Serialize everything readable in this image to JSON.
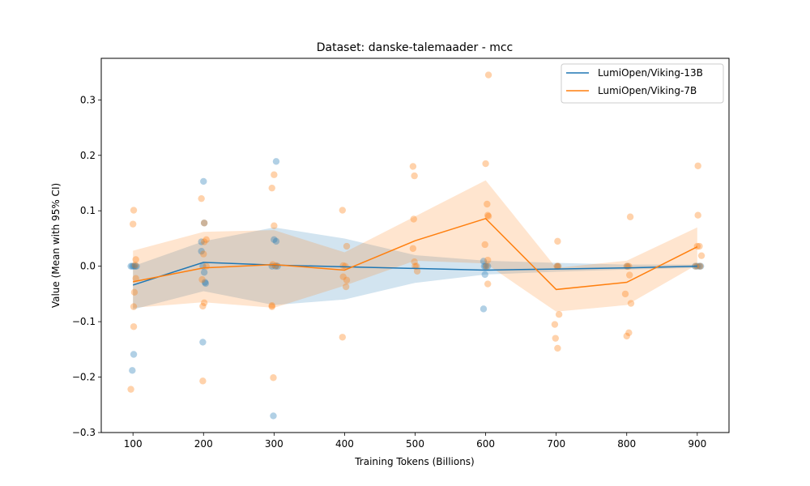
{
  "chart_data": {
    "type": "line",
    "title": "Dataset: danske-talemaader - mcc",
    "xlabel": "Training Tokens (Billions)",
    "ylabel": "Value (Mean with 95% CI)",
    "xlim": [
      55,
      945
    ],
    "ylim": [
      -0.3,
      0.375
    ],
    "xticks": [
      100,
      200,
      300,
      400,
      500,
      600,
      700,
      800,
      900
    ],
    "yticks": [
      -0.3,
      -0.2,
      -0.1,
      0.0,
      0.1,
      0.2,
      0.3
    ],
    "ytick_labels": [
      "−0.3",
      "−0.2",
      "−0.1",
      "0.0",
      "0.1",
      "0.2",
      "0.3"
    ],
    "grid": false,
    "legend_position": "top-right",
    "x": [
      100,
      200,
      300,
      400,
      500,
      600,
      700,
      800,
      900
    ],
    "series": [
      {
        "name": "LumiOpen/Viking-13B",
        "color": "#1f77b4",
        "mean": [
          -0.034,
          0.007,
          0.002,
          -0.001,
          -0.004,
          -0.007,
          -0.005,
          -0.003,
          0.0
        ],
        "ci_lower": [
          -0.078,
          -0.045,
          -0.07,
          -0.06,
          -0.03,
          -0.015,
          -0.01,
          -0.006,
          -0.003
        ],
        "ci_upper": [
          0.0,
          0.045,
          0.07,
          0.05,
          0.02,
          0.01,
          0.006,
          0.003,
          0.003
        ],
        "scatter": [
          {
            "x": 97,
            "y": 0.0
          },
          {
            "x": 99,
            "y": 0.0
          },
          {
            "x": 101,
            "y": 0.0
          },
          {
            "x": 103,
            "y": 0.0
          },
          {
            "x": 105,
            "y": 0.0
          },
          {
            "x": 99,
            "y": -0.188
          },
          {
            "x": 101,
            "y": -0.159
          },
          {
            "x": 200,
            "y": 0.153
          },
          {
            "x": 197,
            "y": 0.044
          },
          {
            "x": 197,
            "y": 0.027
          },
          {
            "x": 199,
            "y": 0.0
          },
          {
            "x": 201,
            "y": -0.011
          },
          {
            "x": 202,
            "y": -0.029
          },
          {
            "x": 203,
            "y": -0.031
          },
          {
            "x": 199,
            "y": -0.137
          },
          {
            "x": 201,
            "y": 0.078
          },
          {
            "x": 303,
            "y": 0.189
          },
          {
            "x": 300,
            "y": 0.048
          },
          {
            "x": 303,
            "y": 0.045
          },
          {
            "x": 297,
            "y": 0.0
          },
          {
            "x": 302,
            "y": 0.0
          },
          {
            "x": 305,
            "y": 0.0
          },
          {
            "x": 299,
            "y": -0.27
          },
          {
            "x": 597,
            "y": 0.009
          },
          {
            "x": 598,
            "y": 0.0
          },
          {
            "x": 600,
            "y": 0.0
          },
          {
            "x": 603,
            "y": 0.0
          },
          {
            "x": 599,
            "y": -0.015
          },
          {
            "x": 597,
            "y": -0.077
          },
          {
            "x": 702,
            "y": 0.0
          },
          {
            "x": 801,
            "y": 0.0
          },
          {
            "x": 897,
            "y": 0.0
          },
          {
            "x": 900,
            "y": 0.0
          },
          {
            "x": 903,
            "y": 0.0
          },
          {
            "x": 905,
            "y": 0.0
          }
        ]
      },
      {
        "name": "LumiOpen/Viking-7B",
        "color": "#ff7f0e",
        "mean": [
          -0.028,
          -0.003,
          0.003,
          -0.007,
          0.046,
          0.086,
          -0.042,
          -0.029,
          0.035
        ],
        "ci_lower": [
          -0.075,
          -0.065,
          -0.075,
          -0.035,
          0.01,
          0.005,
          -0.082,
          -0.07,
          0.003
        ],
        "ci_upper": [
          0.028,
          0.062,
          0.065,
          0.025,
          0.09,
          0.155,
          -0.003,
          0.01,
          0.07
        ],
        "scatter": [
          {
            "x": 101,
            "y": 0.101
          },
          {
            "x": 100,
            "y": 0.076
          },
          {
            "x": 104,
            "y": 0.012
          },
          {
            "x": 103,
            "y": 0.002
          },
          {
            "x": 104,
            "y": -0.022
          },
          {
            "x": 102,
            "y": -0.047
          },
          {
            "x": 101,
            "y": -0.073
          },
          {
            "x": 101,
            "y": -0.109
          },
          {
            "x": 97,
            "y": -0.222
          },
          {
            "x": 197,
            "y": 0.122
          },
          {
            "x": 201,
            "y": 0.078
          },
          {
            "x": 204,
            "y": 0.048
          },
          {
            "x": 201,
            "y": 0.044
          },
          {
            "x": 200,
            "y": 0.022
          },
          {
            "x": 204,
            "y": 0.0
          },
          {
            "x": 198,
            "y": -0.024
          },
          {
            "x": 201,
            "y": -0.066
          },
          {
            "x": 199,
            "y": -0.072
          },
          {
            "x": 199,
            "y": -0.207
          },
          {
            "x": 297,
            "y": 0.141
          },
          {
            "x": 300,
            "y": 0.165
          },
          {
            "x": 300,
            "y": 0.073
          },
          {
            "x": 298,
            "y": 0.003
          },
          {
            "x": 303,
            "y": 0.001
          },
          {
            "x": 297,
            "y": -0.073
          },
          {
            "x": 297,
            "y": -0.071
          },
          {
            "x": 299,
            "y": -0.201
          },
          {
            "x": 397,
            "y": 0.101
          },
          {
            "x": 403,
            "y": 0.036
          },
          {
            "x": 398,
            "y": 0.001
          },
          {
            "x": 401,
            "y": 0.0
          },
          {
            "x": 398,
            "y": -0.019
          },
          {
            "x": 403,
            "y": -0.025
          },
          {
            "x": 402,
            "y": -0.037
          },
          {
            "x": 397,
            "y": -0.128
          },
          {
            "x": 497,
            "y": 0.18
          },
          {
            "x": 499,
            "y": 0.163
          },
          {
            "x": 498,
            "y": 0.085
          },
          {
            "x": 497,
            "y": 0.032
          },
          {
            "x": 499,
            "y": 0.008
          },
          {
            "x": 500,
            "y": 0.0
          },
          {
            "x": 502,
            "y": 0.0
          },
          {
            "x": 503,
            "y": -0.009
          },
          {
            "x": 604,
            "y": 0.345
          },
          {
            "x": 600,
            "y": 0.185
          },
          {
            "x": 602,
            "y": 0.112
          },
          {
            "x": 603,
            "y": 0.092
          },
          {
            "x": 604,
            "y": 0.09
          },
          {
            "x": 599,
            "y": 0.039
          },
          {
            "x": 603,
            "y": 0.011
          },
          {
            "x": 601,
            "y": 0.0
          },
          {
            "x": 603,
            "y": -0.032
          },
          {
            "x": 702,
            "y": 0.045
          },
          {
            "x": 701,
            "y": 0.0
          },
          {
            "x": 703,
            "y": 0.0
          },
          {
            "x": 704,
            "y": -0.087
          },
          {
            "x": 698,
            "y": -0.105
          },
          {
            "x": 699,
            "y": -0.13
          },
          {
            "x": 702,
            "y": -0.148
          },
          {
            "x": 805,
            "y": 0.089
          },
          {
            "x": 800,
            "y": 0.0
          },
          {
            "x": 803,
            "y": 0.0
          },
          {
            "x": 804,
            "y": -0.016
          },
          {
            "x": 798,
            "y": -0.05
          },
          {
            "x": 806,
            "y": -0.067
          },
          {
            "x": 803,
            "y": -0.12
          },
          {
            "x": 800,
            "y": -0.126
          },
          {
            "x": 901,
            "y": 0.181
          },
          {
            "x": 901,
            "y": 0.092
          },
          {
            "x": 900,
            "y": 0.036
          },
          {
            "x": 903,
            "y": 0.036
          },
          {
            "x": 906,
            "y": 0.019
          },
          {
            "x": 898,
            "y": 0.0
          },
          {
            "x": 904,
            "y": 0.0
          }
        ]
      }
    ]
  }
}
